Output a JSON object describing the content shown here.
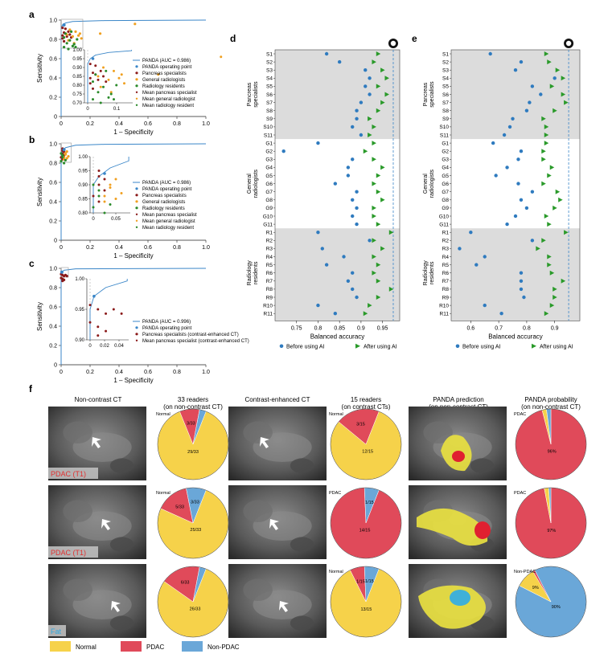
{
  "colors": {
    "panda": "#3a86c8",
    "pancreas": "#8b1a1a",
    "general": "#f0a020",
    "radiology": "#2a8a2a",
    "normal": "#f6d24a",
    "pdac": "#e04a5a",
    "nonpdac": "#6aa7d8",
    "shade": "#dcdcdc",
    "arrow": "#2a9a2a",
    "dot": "#2f7bbf"
  },
  "panels": {
    "a": "a",
    "b": "b",
    "c": "c",
    "d": "d",
    "e": "e",
    "f": "f"
  },
  "roc_axes": {
    "xlabel": "1 – Specificity",
    "ylabel": "Sensitivity",
    "xticks": [
      "0",
      "0.2",
      "0.4",
      "0.6",
      "0.8",
      "1.0"
    ],
    "yticks": [
      "0",
      "0.2",
      "0.4",
      "0.6",
      "0.8",
      "1.0"
    ]
  },
  "legend_a": [
    "PANDA (AUC = 0.986)",
    "PANDA operating point",
    "Pancreas specialists",
    "General radiologists",
    "Radiology residents",
    "Mean pancreas specialist",
    "Mean general radiologist",
    "Mean radiology resident"
  ],
  "legend_b": [
    "PANDA (AUC = 0.986)",
    "PANDA operating point",
    "Pancreas specialists",
    "General radiologists",
    "Radiology residents",
    "Mean pancreas specialist",
    "Mean general radiologist",
    "Mean radiology resident"
  ],
  "legend_c": [
    "PANDA (AUC = 0.996)",
    "PANDA operating point",
    "Pancreas specialists (contrast-enhanced CT)",
    "Mean pancreas specialist (contrast-enhanced CT)"
  ],
  "inset_a": {
    "yticks": [
      "1.00",
      "0.95",
      "0.90",
      "0.85",
      "0.80",
      "0.75",
      "0.70"
    ],
    "xticks": [
      "0",
      "0.1"
    ]
  },
  "inset_b": {
    "yticks": [
      "1.00",
      "0.95",
      "0.90",
      "0.85",
      "0.80"
    ],
    "xticks": [
      "0",
      "0.05"
    ]
  },
  "inset_c": {
    "yticks": [
      "1.00",
      "0.95",
      "0.90"
    ],
    "xticks": [
      "0",
      "0.02",
      "0.04"
    ]
  },
  "acc_axis": {
    "xlabel": "Balanced accuracy",
    "groups": [
      "Pancreas specialists",
      "General radiologists",
      "Radiology residents"
    ],
    "legend": [
      "Before using AI",
      "After using AI"
    ]
  },
  "f_headers": [
    "Non-contrast CT",
    "33 readers (on non-contrast CT)",
    "Contrast-enhanced CT",
    "15 readers (on contrast CTs)",
    "PANDA prediction (on non-contrast CT)",
    "PANDA probability (on non-contrast CT)"
  ],
  "f_cases": [
    "PDAC (T1)",
    "PDAC (T1)",
    "Fat"
  ],
  "f_legend": [
    "Normal",
    "PDAC",
    "Non-PDAC"
  ],
  "chart_data": [
    {
      "type": "scatter",
      "panel": "a",
      "title": "",
      "xlabel": "1 – Specificity",
      "ylabel": "Sensitivity",
      "xlim": [
        0,
        1
      ],
      "ylim": [
        0,
        1
      ],
      "panda_curve": [
        [
          0,
          0
        ],
        [
          0,
          0.92
        ],
        [
          0.01,
          0.95
        ],
        [
          0.03,
          0.97
        ],
        [
          0.08,
          0.985
        ],
        [
          0.3,
          0.995
        ],
        [
          1,
          1
        ]
      ],
      "panda_operating_point": [
        0.02,
        0.95
      ],
      "series": [
        {
          "name": "Pancreas specialists",
          "points": [
            [
              0.01,
              0.92
            ],
            [
              0.02,
              0.87
            ],
            [
              0.03,
              0.86
            ],
            [
              0.01,
              0.84
            ],
            [
              0.04,
              0.83
            ],
            [
              0.05,
              0.88
            ],
            [
              0.02,
              0.78
            ],
            [
              0.06,
              0.85
            ],
            [
              0.03,
              0.91
            ],
            [
              0.01,
              0.81
            ],
            [
              0.07,
              0.82
            ]
          ]
        },
        {
          "name": "General radiologists",
          "points": [
            [
              0.06,
              0.9
            ],
            [
              0.1,
              0.88
            ],
            [
              0.08,
              0.83
            ],
            [
              0.13,
              0.86
            ],
            [
              0.05,
              0.79
            ],
            [
              0.14,
              0.81
            ],
            [
              0.09,
              0.76
            ],
            [
              0.27,
              0.86
            ],
            [
              0.51,
              0.96
            ],
            [
              0.12,
              0.84
            ],
            [
              0.04,
              0.85
            ]
          ]
        },
        {
          "name": "Radiology residents",
          "points": [
            [
              0.02,
              0.82
            ],
            [
              0.04,
              0.76
            ],
            [
              0.08,
              0.73
            ],
            [
              0.06,
              0.79
            ],
            [
              0.1,
              0.72
            ],
            [
              0.03,
              0.86
            ],
            [
              0.05,
              0.7
            ],
            [
              0.09,
              0.75
            ],
            [
              0.11,
              0.8
            ],
            [
              0.07,
              0.88
            ],
            [
              0.02,
              0.72
            ]
          ]
        }
      ]
    },
    {
      "type": "scatter",
      "panel": "b",
      "title": "",
      "xlabel": "1 – Specificity",
      "ylabel": "Sensitivity",
      "xlim": [
        0,
        1
      ],
      "ylim": [
        0,
        1
      ],
      "panda_curve": [
        [
          0,
          0
        ],
        [
          0,
          0.9
        ],
        [
          0.01,
          0.93
        ],
        [
          0.03,
          0.96
        ],
        [
          0.1,
          0.985
        ],
        [
          0.3,
          0.995
        ],
        [
          1,
          1
        ]
      ],
      "panda_operating_point": [
        0.02,
        0.94
      ],
      "series": [
        {
          "name": "Pancreas specialists",
          "points": [
            [
              0.01,
              0.95
            ],
            [
              0.01,
              0.93
            ],
            [
              0.02,
              0.92
            ],
            [
              0.01,
              0.9
            ],
            [
              0.02,
              0.88
            ],
            [
              0.0,
              0.86
            ],
            [
              0.01,
              0.84
            ],
            [
              0.02,
              0.94
            ]
          ]
        },
        {
          "name": "General radiologists",
          "points": [
            [
              0.02,
              0.86
            ],
            [
              0.03,
              0.89
            ],
            [
              0.04,
              0.92
            ],
            [
              0.02,
              0.84
            ],
            [
              0.03,
              0.9
            ],
            [
              0.05,
              0.87
            ],
            [
              0.04,
              0.85
            ]
          ]
        },
        {
          "name": "Radiology residents",
          "points": [
            [
              0.0,
              0.82
            ],
            [
              0.01,
              0.86
            ],
            [
              0.02,
              0.8
            ],
            [
              0.01,
              0.88
            ],
            [
              0.03,
              0.83
            ],
            [
              0.0,
              0.9
            ]
          ]
        }
      ]
    },
    {
      "type": "scatter",
      "panel": "c",
      "title": "",
      "xlabel": "1 – Specificity",
      "ylabel": "Sensitivity",
      "xlim": [
        0,
        1
      ],
      "ylim": [
        0,
        1
      ],
      "panda_curve": [
        [
          0,
          0
        ],
        [
          0,
          0.93
        ],
        [
          0.005,
          0.96
        ],
        [
          0.02,
          0.98
        ],
        [
          0.1,
          0.995
        ],
        [
          1,
          1
        ]
      ],
      "panda_operating_point": [
        0.005,
        0.96
      ],
      "series": [
        {
          "name": "Pancreas specialists (contrast-enhanced CT)",
          "points": [
            [
              0.0,
              0.94
            ],
            [
              0.01,
              0.93
            ],
            [
              0.02,
              0.92
            ],
            [
              0.0,
              0.9
            ],
            [
              0.01,
              0.89
            ],
            [
              0.03,
              0.93
            ],
            [
              0.02,
              0.88
            ],
            [
              0.04,
              0.92
            ],
            [
              0.01,
              0.87
            ]
          ]
        }
      ]
    },
    {
      "type": "scatter",
      "panel": "d",
      "xlabel": "Balanced accuracy",
      "xlim": [
        0.7,
        0.99
      ],
      "xticks": [
        0.75,
        0.8,
        0.85,
        0.9,
        0.95
      ],
      "panda_reference": 0.975,
      "readers": [
        "S1",
        "S2",
        "S3",
        "S4",
        "S5",
        "S6",
        "S7",
        "S8",
        "S9",
        "S10",
        "S11",
        "G1",
        "G2",
        "G3",
        "G4",
        "G5",
        "G6",
        "G7",
        "G8",
        "G9",
        "G10",
        "G11",
        "R1",
        "R2",
        "R3",
        "R4",
        "R5",
        "R6",
        "R7",
        "R8",
        "R9",
        "R10",
        "R11"
      ],
      "before": [
        0.82,
        0.85,
        0.91,
        0.92,
        0.91,
        0.92,
        0.9,
        0.89,
        0.89,
        0.88,
        0.9,
        0.8,
        0.72,
        0.88,
        0.87,
        0.87,
        0.84,
        0.89,
        0.88,
        0.89,
        0.88,
        0.89,
        0.8,
        0.92,
        0.81,
        0.86,
        0.82,
        0.88,
        0.87,
        0.88,
        0.89,
        0.8,
        0.84
      ],
      "after": [
        0.94,
        0.93,
        0.95,
        0.96,
        0.94,
        0.96,
        0.95,
        0.94,
        0.92,
        0.93,
        0.92,
        0.93,
        0.91,
        0.93,
        0.95,
        0.94,
        0.93,
        0.94,
        0.95,
        0.93,
        0.93,
        0.94,
        0.97,
        0.93,
        0.95,
        0.93,
        0.94,
        0.93,
        0.94,
        0.97,
        0.94,
        0.92,
        0.91
      ]
    },
    {
      "type": "scatter",
      "panel": "e",
      "xlabel": "Balanced accuracy",
      "xlim": [
        0.53,
        0.99
      ],
      "xticks": [
        0.6,
        0.7,
        0.8,
        0.9
      ],
      "panda_reference": 0.95,
      "readers": [
        "S1",
        "S2",
        "S3",
        "S4",
        "S5",
        "S6",
        "S7",
        "S8",
        "S9",
        "S10",
        "S11",
        "G1",
        "G2",
        "G3",
        "G4",
        "G5",
        "G6",
        "G7",
        "G8",
        "G9",
        "G10",
        "G11",
        "R1",
        "R2",
        "R3",
        "R4",
        "R5",
        "R6",
        "R7",
        "R8",
        "R9",
        "R10",
        "R11"
      ],
      "before": [
        0.67,
        0.78,
        0.76,
        0.9,
        0.82,
        0.85,
        0.81,
        0.8,
        0.75,
        0.74,
        0.72,
        0.68,
        0.78,
        0.77,
        0.73,
        0.69,
        0.77,
        0.82,
        0.78,
        0.8,
        0.76,
        0.73,
        0.6,
        0.82,
        0.56,
        0.65,
        0.62,
        0.78,
        0.78,
        0.78,
        0.79,
        0.65,
        0.71
      ],
      "after": [
        0.87,
        0.88,
        0.91,
        0.93,
        0.89,
        0.93,
        0.94,
        0.9,
        0.86,
        0.87,
        0.87,
        0.87,
        0.86,
        0.86,
        0.89,
        0.88,
        0.86,
        0.91,
        0.92,
        0.9,
        0.87,
        0.88,
        0.94,
        0.86,
        0.84,
        0.88,
        0.88,
        0.89,
        0.93,
        0.9,
        0.9,
        0.89,
        0.87
      ]
    },
    {
      "type": "pie",
      "panel": "f",
      "title": "33 readers (on non-contrast CT)",
      "cases": [
        {
          "slices": [
            {
              "label": "Normal",
              "value": 29,
              "text": "29/33"
            },
            {
              "label": "PDAC",
              "value": 3,
              "text": "3/33"
            },
            {
              "label": "Non-PDAC",
              "value": 1,
              "text": ""
            }
          ],
          "title_label": "Normal"
        },
        {
          "slices": [
            {
              "label": "Normal",
              "value": 25,
              "text": "25/33"
            },
            {
              "label": "PDAC",
              "value": 5,
              "text": "5/33"
            },
            {
              "label": "Non-PDAC",
              "value": 3,
              "text": "3/33"
            }
          ],
          "title_label": "Normal"
        },
        {
          "slices": [
            {
              "label": "Normal",
              "value": 26,
              "text": "26/33"
            },
            {
              "label": "PDAC",
              "value": 6,
              "text": "6/33"
            },
            {
              "label": "Non-PDAC",
              "value": 1,
              "text": ""
            }
          ],
          "title_label": ""
        }
      ]
    },
    {
      "type": "pie",
      "panel": "f",
      "title": "15 readers (on contrast CTs)",
      "cases": [
        {
          "slices": [
            {
              "label": "Normal",
              "value": 12,
              "text": "12/15"
            },
            {
              "label": "PDAC",
              "value": 3,
              "text": "3/15"
            }
          ],
          "title_label": "Normal"
        },
        {
          "slices": [
            {
              "label": "PDAC",
              "value": 14,
              "text": "14/15"
            },
            {
              "label": "Non-PDAC",
              "value": 1,
              "text": "1/15"
            }
          ],
          "title_label": "PDAC"
        },
        {
          "slices": [
            {
              "label": "Normal",
              "value": 13,
              "text": "13/15"
            },
            {
              "label": "PDAC",
              "value": 1,
              "text": "1/15"
            },
            {
              "label": "Non-PDAC",
              "value": 1,
              "text": "1/15"
            }
          ],
          "title_label": "Normal"
        }
      ]
    },
    {
      "type": "pie",
      "panel": "f",
      "title": "PANDA probability (on non-contrast CT)",
      "cases": [
        {
          "slices": [
            {
              "label": "PDAC",
              "value": 96,
              "text": "96%"
            },
            {
              "label": "Normal",
              "value": 2,
              "text": ""
            },
            {
              "label": "Non-PDAC",
              "value": 2,
              "text": ""
            }
          ],
          "title_label": "PDAC"
        },
        {
          "slices": [
            {
              "label": "PDAC",
              "value": 97,
              "text": "97%"
            },
            {
              "label": "Normal",
              "value": 2,
              "text": ""
            },
            {
              "label": "Non-PDAC",
              "value": 1,
              "text": ""
            }
          ],
          "title_label": "PDAC"
        },
        {
          "slices": [
            {
              "label": "Non-PDAC",
              "value": 90,
              "text": "90%"
            },
            {
              "label": "Normal",
              "value": 9,
              "text": "9%"
            },
            {
              "label": "PDAC",
              "value": 1,
              "text": ""
            }
          ],
          "title_label": "Non-PDAC"
        }
      ]
    }
  ]
}
